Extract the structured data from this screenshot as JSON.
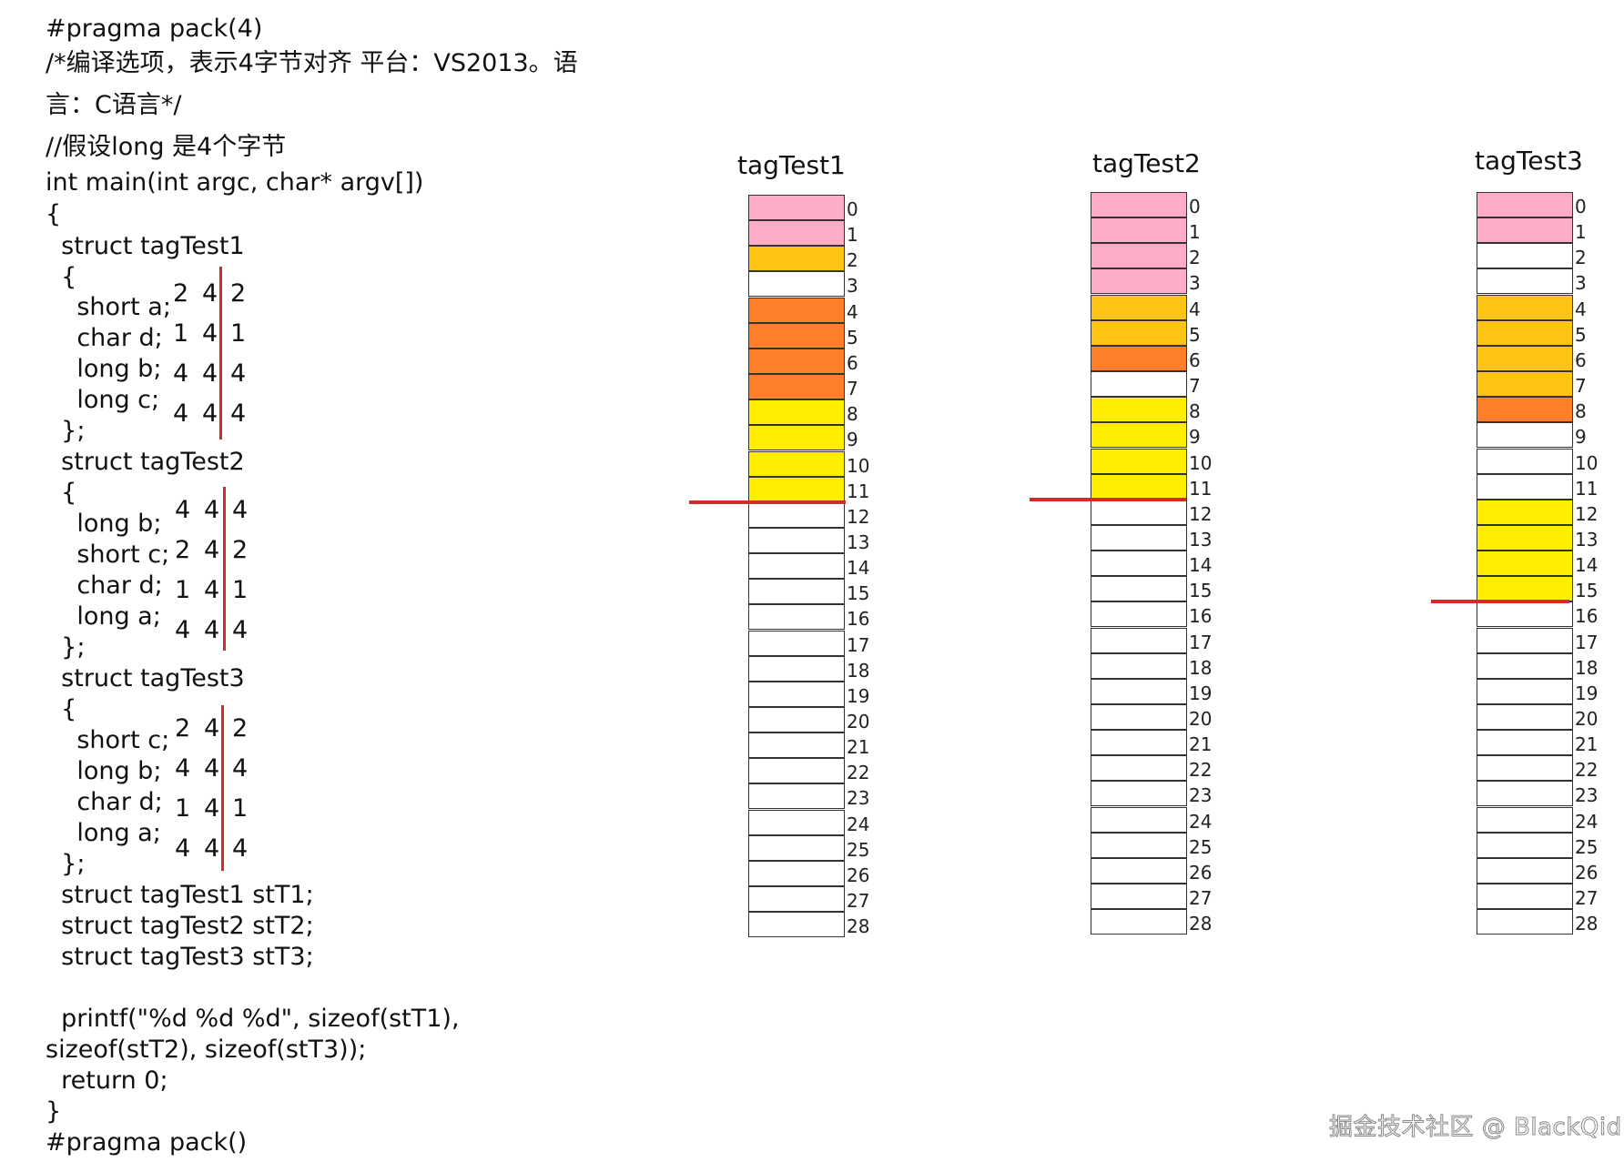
{
  "code_lines": [
    "#pragma pack(4)",
    "/*编译选项，表示4字节对齐 平台：VS2013。语",
    "言：C语言*/",
    "//假设long 是4个字节",
    "int main(int argc, char* argv[])",
    "{",
    "  struct tagTest1",
    "  {",
    "    short a;",
    "    char d;",
    "    long b;",
    "    long c;",
    "  };",
    "  struct tagTest2",
    "  {",
    "    long b;",
    "    short c;",
    "    char d;",
    "    long a;",
    "  };",
    "  struct tagTest3",
    "  {",
    "    short c;",
    "    long b;",
    "    char d;",
    "    long a;",
    "  };",
    "  struct tagTest1 stT1;",
    "  struct tagTest2 stT2;",
    "  struct tagTest3 stT3;",
    "  printf(\"%d %d %d\", sizeof(stT1),",
    "sizeof(stT2), sizeof(stT3));",
    "  return 0;",
    "}",
    "#pragma pack()"
  ],
  "member_sizes": [
    [
      [
        "2",
        "4",
        "2"
      ],
      [
        "1",
        "4",
        "1"
      ],
      [
        "4",
        "4",
        "4"
      ],
      [
        "4",
        "4",
        "4"
      ]
    ],
    [
      [
        "4",
        "4",
        "4"
      ],
      [
        "2",
        "4",
        "2"
      ],
      [
        "1",
        "4",
        "1"
      ],
      [
        "4",
        "4",
        "4"
      ]
    ],
    [
      [
        "2",
        "4",
        "2"
      ],
      [
        "4",
        "4",
        "4"
      ],
      [
        "1",
        "4",
        "1"
      ],
      [
        "4",
        "4",
        "4"
      ]
    ]
  ],
  "colors": {
    "pink": "#ffaccb",
    "amber": "#ffc413",
    "orange": "#ff7f2a",
    "yellow": "#ffee00",
    "white": "#ffffff",
    "red_line": "#d42a2a"
  },
  "memory_columns": [
    {
      "title": "tagTest1",
      "cells": [
        "pink",
        "pink",
        "amber",
        "white",
        "orange",
        "orange",
        "orange",
        "orange",
        "yellow",
        "yellow",
        "yellow",
        "yellow",
        "white",
        "white",
        "white",
        "white",
        "white",
        "white",
        "white",
        "white",
        "white",
        "white",
        "white",
        "white",
        "white",
        "white",
        "white",
        "white",
        "white"
      ],
      "size_boundary": 12
    },
    {
      "title": "tagTest2",
      "cells": [
        "pink",
        "pink",
        "pink",
        "pink",
        "amber",
        "amber",
        "orange",
        "white",
        "yellow",
        "yellow",
        "yellow",
        "yellow",
        "white",
        "white",
        "white",
        "white",
        "white",
        "white",
        "white",
        "white",
        "white",
        "white",
        "white",
        "white",
        "white",
        "white",
        "white",
        "white",
        "white"
      ],
      "size_boundary": 12
    },
    {
      "title": "tagTest3",
      "cells": [
        "pink",
        "pink",
        "white",
        "white",
        "amber",
        "amber",
        "amber",
        "amber",
        "orange",
        "white",
        "white",
        "white",
        "yellow",
        "yellow",
        "yellow",
        "yellow",
        "white",
        "white",
        "white",
        "white",
        "white",
        "white",
        "white",
        "white",
        "white",
        "white",
        "white",
        "white",
        "white"
      ],
      "size_boundary": 16
    }
  ],
  "watermark": "掘金技术社区 @ BlackQid"
}
